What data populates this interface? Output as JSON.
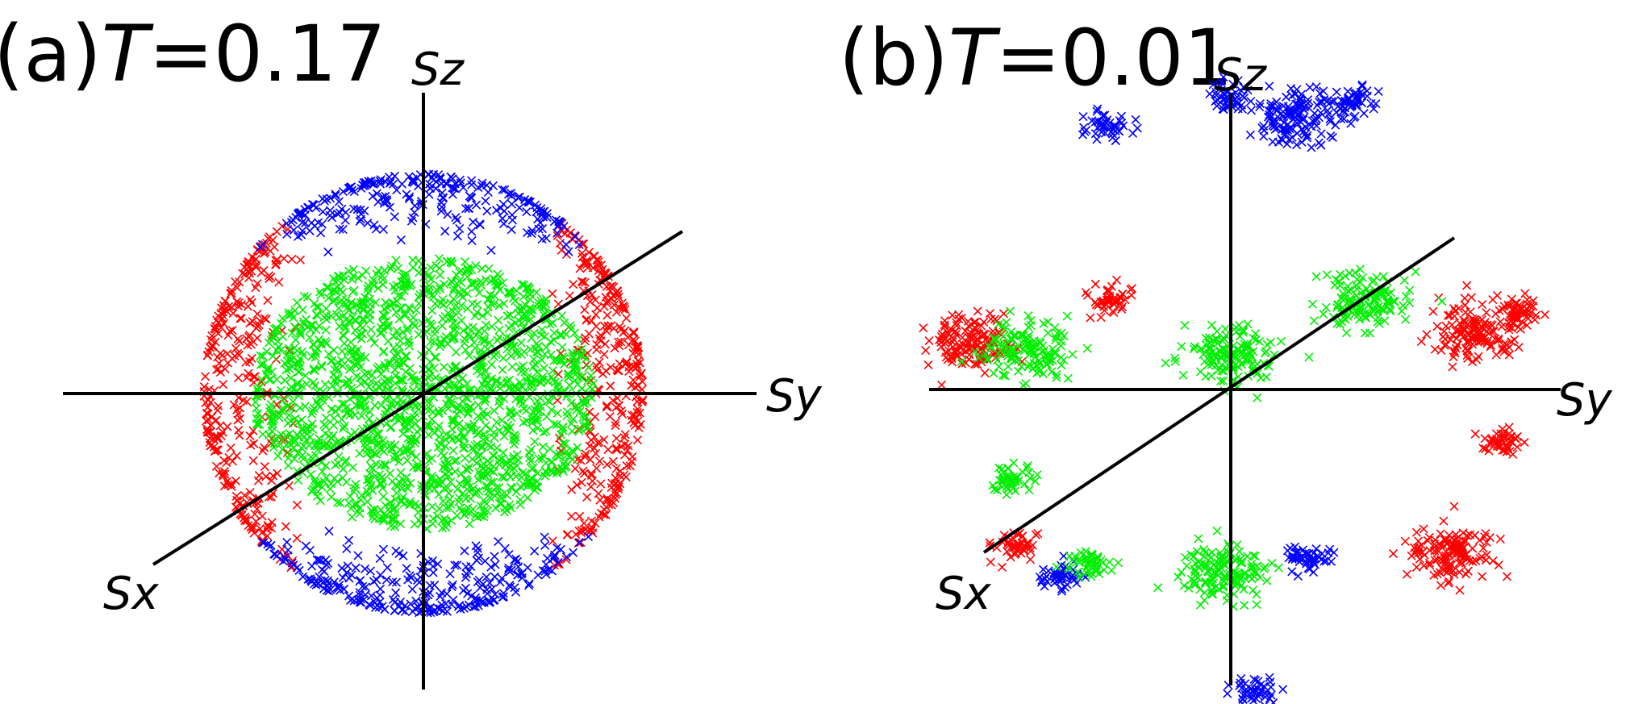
{
  "chart_data": [
    {
      "type": "scatter",
      "panel": "(a)",
      "title_var": "T",
      "title_val": "=0.17",
      "axes": {
        "z": "Sz",
        "y": "Sy",
        "x": "Sx"
      },
      "grid": false,
      "series": [
        {
          "color": "#0000ff",
          "cloud": "ring",
          "region": "top and bottom caps of the sphere, |Sz| near 1"
        },
        {
          "color": "#ff0000",
          "cloud": "ring",
          "region": "left and right caps of the sphere, |Sy| near 1"
        },
        {
          "color": "#00ee00",
          "cloud": "disk",
          "region": "central band of the sphere, Sx direction"
        }
      ]
    },
    {
      "type": "scatter",
      "panel": "(b)",
      "title_var": "T",
      "title_val": "=0.01",
      "axes": {
        "z": "Sz",
        "y": "Sy",
        "x": "Sx"
      },
      "grid": false,
      "series": [
        {
          "color": "#0000ff",
          "cloud": "clusters",
          "clusters": [
            {
              "sz": 0.86,
              "sy": -0.4,
              "spread": "small"
            },
            {
              "sz": 0.88,
              "sy": 0.22,
              "spread": "medium"
            },
            {
              "sz": 0.95,
              "sy": 0.0,
              "spread": "small"
            },
            {
              "sz": 0.93,
              "sy": 0.4,
              "spread": "small"
            },
            {
              "sz": -0.55,
              "sy": 0.25,
              "spread": "small"
            },
            {
              "sz": -0.61,
              "sy": -0.55,
              "spread": "small"
            },
            {
              "sz": -0.98,
              "sy": 0.08,
              "spread": "small"
            }
          ]
        },
        {
          "color": "#ff0000",
          "cloud": "clusters",
          "clusters": [
            {
              "sz": 0.15,
              "sy": -0.85,
              "spread": "medium"
            },
            {
              "sz": 0.3,
              "sy": -0.4,
              "spread": "small"
            },
            {
              "sz": 0.19,
              "sy": 0.79,
              "spread": "medium"
            },
            {
              "sz": 0.25,
              "sy": 0.94,
              "spread": "small"
            },
            {
              "sz": -0.17,
              "sy": 0.89,
              "spread": "small"
            },
            {
              "sz": -0.51,
              "sy": -0.7,
              "spread": "small"
            },
            {
              "sz": -0.53,
              "sy": 0.72,
              "spread": "medium"
            }
          ]
        },
        {
          "color": "#00ee00",
          "cloud": "clusters",
          "clusters": [
            {
              "sz": 0.13,
              "sy": -0.66,
              "spread": "medium"
            },
            {
              "sz": 0.12,
              "sy": 0.0,
              "spread": "medium"
            },
            {
              "sz": 0.29,
              "sy": 0.43,
              "spread": "medium"
            },
            {
              "sz": -0.29,
              "sy": -0.71,
              "spread": "small"
            },
            {
              "sz": -0.57,
              "sy": -0.45,
              "spread": "small"
            },
            {
              "sz": -0.59,
              "sy": -0.02,
              "spread": "medium"
            }
          ]
        }
      ]
    }
  ]
}
